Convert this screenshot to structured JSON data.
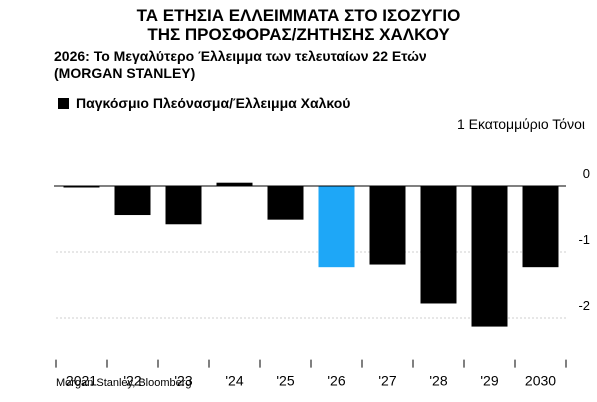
{
  "title_line1": "ΤΑ ΕΤΗΣΙΑ ΕΛΛΕΙΜΜΑΤΑ ΣΤΟ ΙΣΟΖΥΓΙΟ",
  "title_line2": "ΤΗΣ ΠΡΟΣΦΟΡΑΣ/ΖΗΤΗΣΗΣ ΧΑΛΚΟΥ",
  "subtitle_line1": "2026: Το Μεγαλύτερο Έλλειμμα των τελευταίων 22 Ετών",
  "subtitle_line2": "(MORGAN STANLEY)",
  "source": "Morgan Stanley, Bloomberg",
  "colors": {
    "bar": "#000000",
    "highlight": "#1ea7f7",
    "grid": "#cfcfcf",
    "zero_line": "#000000",
    "ticks": "#000000"
  },
  "chart_data": {
    "type": "bar",
    "categories": [
      "2021",
      "'22",
      "'23",
      "'24",
      "'25",
      "'26",
      "'27",
      "'28",
      "'29",
      "2030"
    ],
    "series": [
      {
        "name": "Παγκόσμιο Πλεόνασμα/Έλλειμμα Χαλκού",
        "values": [
          -0.02,
          -0.44,
          -0.58,
          0.05,
          -0.51,
          -1.23,
          -1.19,
          -1.78,
          -2.13,
          -1.23
        ]
      }
    ],
    "highlight_category": "'26",
    "ylabel": "1 Εκατομμύριο Τόνοι",
    "yticks": [
      0,
      -1,
      -2
    ],
    "ytick_labels": [
      "0",
      "-1",
      "-2"
    ],
    "ylim": [
      -2.6,
      0.75
    ],
    "grid": true,
    "legend": "top-left"
  }
}
